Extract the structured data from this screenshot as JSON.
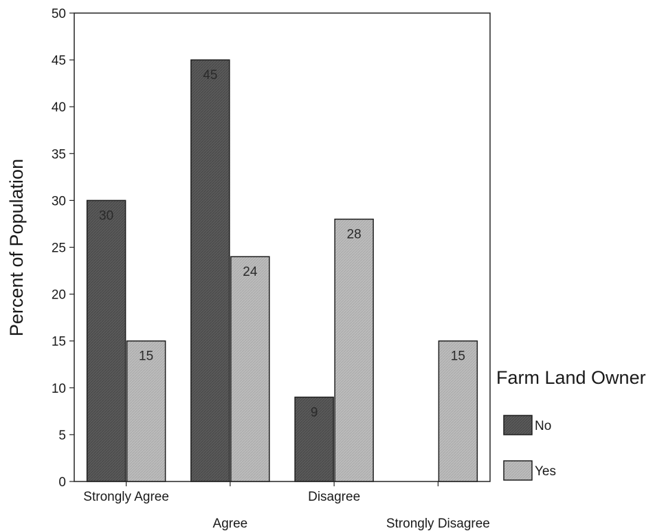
{
  "chart_data": {
    "type": "bar",
    "categories": [
      "Strongly Agree",
      "Agree",
      "Disagree",
      "Strongly Disagree"
    ],
    "series": [
      {
        "name": "No",
        "values": [
          30,
          45,
          9,
          null
        ],
        "labels": [
          "30",
          "45",
          "9",
          ""
        ],
        "color": "#5a5a5a"
      },
      {
        "name": "Yes",
        "values": [
          15,
          24,
          28,
          15
        ],
        "labels": [
          "15",
          "24",
          "28",
          "15"
        ],
        "color": "#b8b8b8"
      }
    ],
    "ylabel": "Percent of Population",
    "xlabel": "",
    "ylim": [
      0,
      50
    ],
    "yticks": [
      0,
      5,
      10,
      15,
      20,
      25,
      30,
      35,
      40,
      45,
      50
    ],
    "legend_title": "Farm Land Owner",
    "legend_position": "right",
    "grid": false
  }
}
